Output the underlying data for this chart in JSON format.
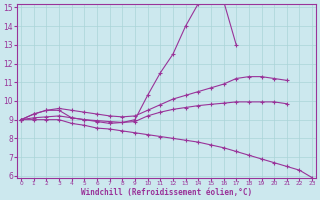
{
  "xlabel": "Windchill (Refroidissement éolien,°C)",
  "background_color": "#cce8ee",
  "line_color": "#993399",
  "grid_color": "#aad4d8",
  "xmin": 0,
  "xmax": 23,
  "ymin": 6,
  "ymax": 15,
  "lines": [
    {
      "x": [
        0,
        1,
        2,
        3,
        4,
        5,
        6,
        7,
        8,
        9,
        10,
        11,
        12,
        13,
        14,
        15,
        16,
        17
      ],
      "y": [
        9.0,
        9.3,
        9.5,
        9.5,
        9.1,
        9.0,
        8.9,
        8.8,
        8.85,
        9.0,
        10.3,
        11.5,
        12.5,
        14.0,
        15.2,
        15.35,
        15.35,
        13.0
      ]
    },
    {
      "x": [
        0,
        1,
        2,
        3,
        4,
        5,
        6,
        7,
        8,
        9,
        10,
        11,
        12,
        13,
        14,
        15,
        16,
        17,
        18,
        19,
        20,
        21
      ],
      "y": [
        9.0,
        9.3,
        9.5,
        9.6,
        9.5,
        9.4,
        9.3,
        9.2,
        9.15,
        9.2,
        9.5,
        9.8,
        10.1,
        10.3,
        10.5,
        10.7,
        10.9,
        11.2,
        11.3,
        11.3,
        11.2,
        11.1
      ]
    },
    {
      "x": [
        0,
        1,
        2,
        3,
        4,
        5,
        6,
        7,
        8,
        9,
        10,
        11,
        12,
        13,
        14,
        15,
        16,
        17,
        18,
        19,
        20,
        21
      ],
      "y": [
        9.0,
        9.1,
        9.15,
        9.2,
        9.1,
        9.0,
        8.95,
        8.9,
        8.85,
        8.9,
        9.2,
        9.4,
        9.55,
        9.65,
        9.75,
        9.82,
        9.88,
        9.95,
        9.95,
        9.95,
        9.95,
        9.85
      ]
    },
    {
      "x": [
        0,
        1,
        2,
        3,
        4,
        5,
        6,
        7,
        8,
        9,
        10,
        11,
        12,
        13,
        14,
        15,
        16,
        17,
        18,
        19,
        20,
        21,
        22,
        23
      ],
      "y": [
        9.0,
        9.0,
        9.0,
        9.0,
        8.8,
        8.7,
        8.55,
        8.5,
        8.4,
        8.3,
        8.2,
        8.1,
        8.0,
        7.9,
        7.8,
        7.65,
        7.5,
        7.3,
        7.1,
        6.9,
        6.7,
        6.5,
        6.3,
        5.9
      ]
    }
  ]
}
